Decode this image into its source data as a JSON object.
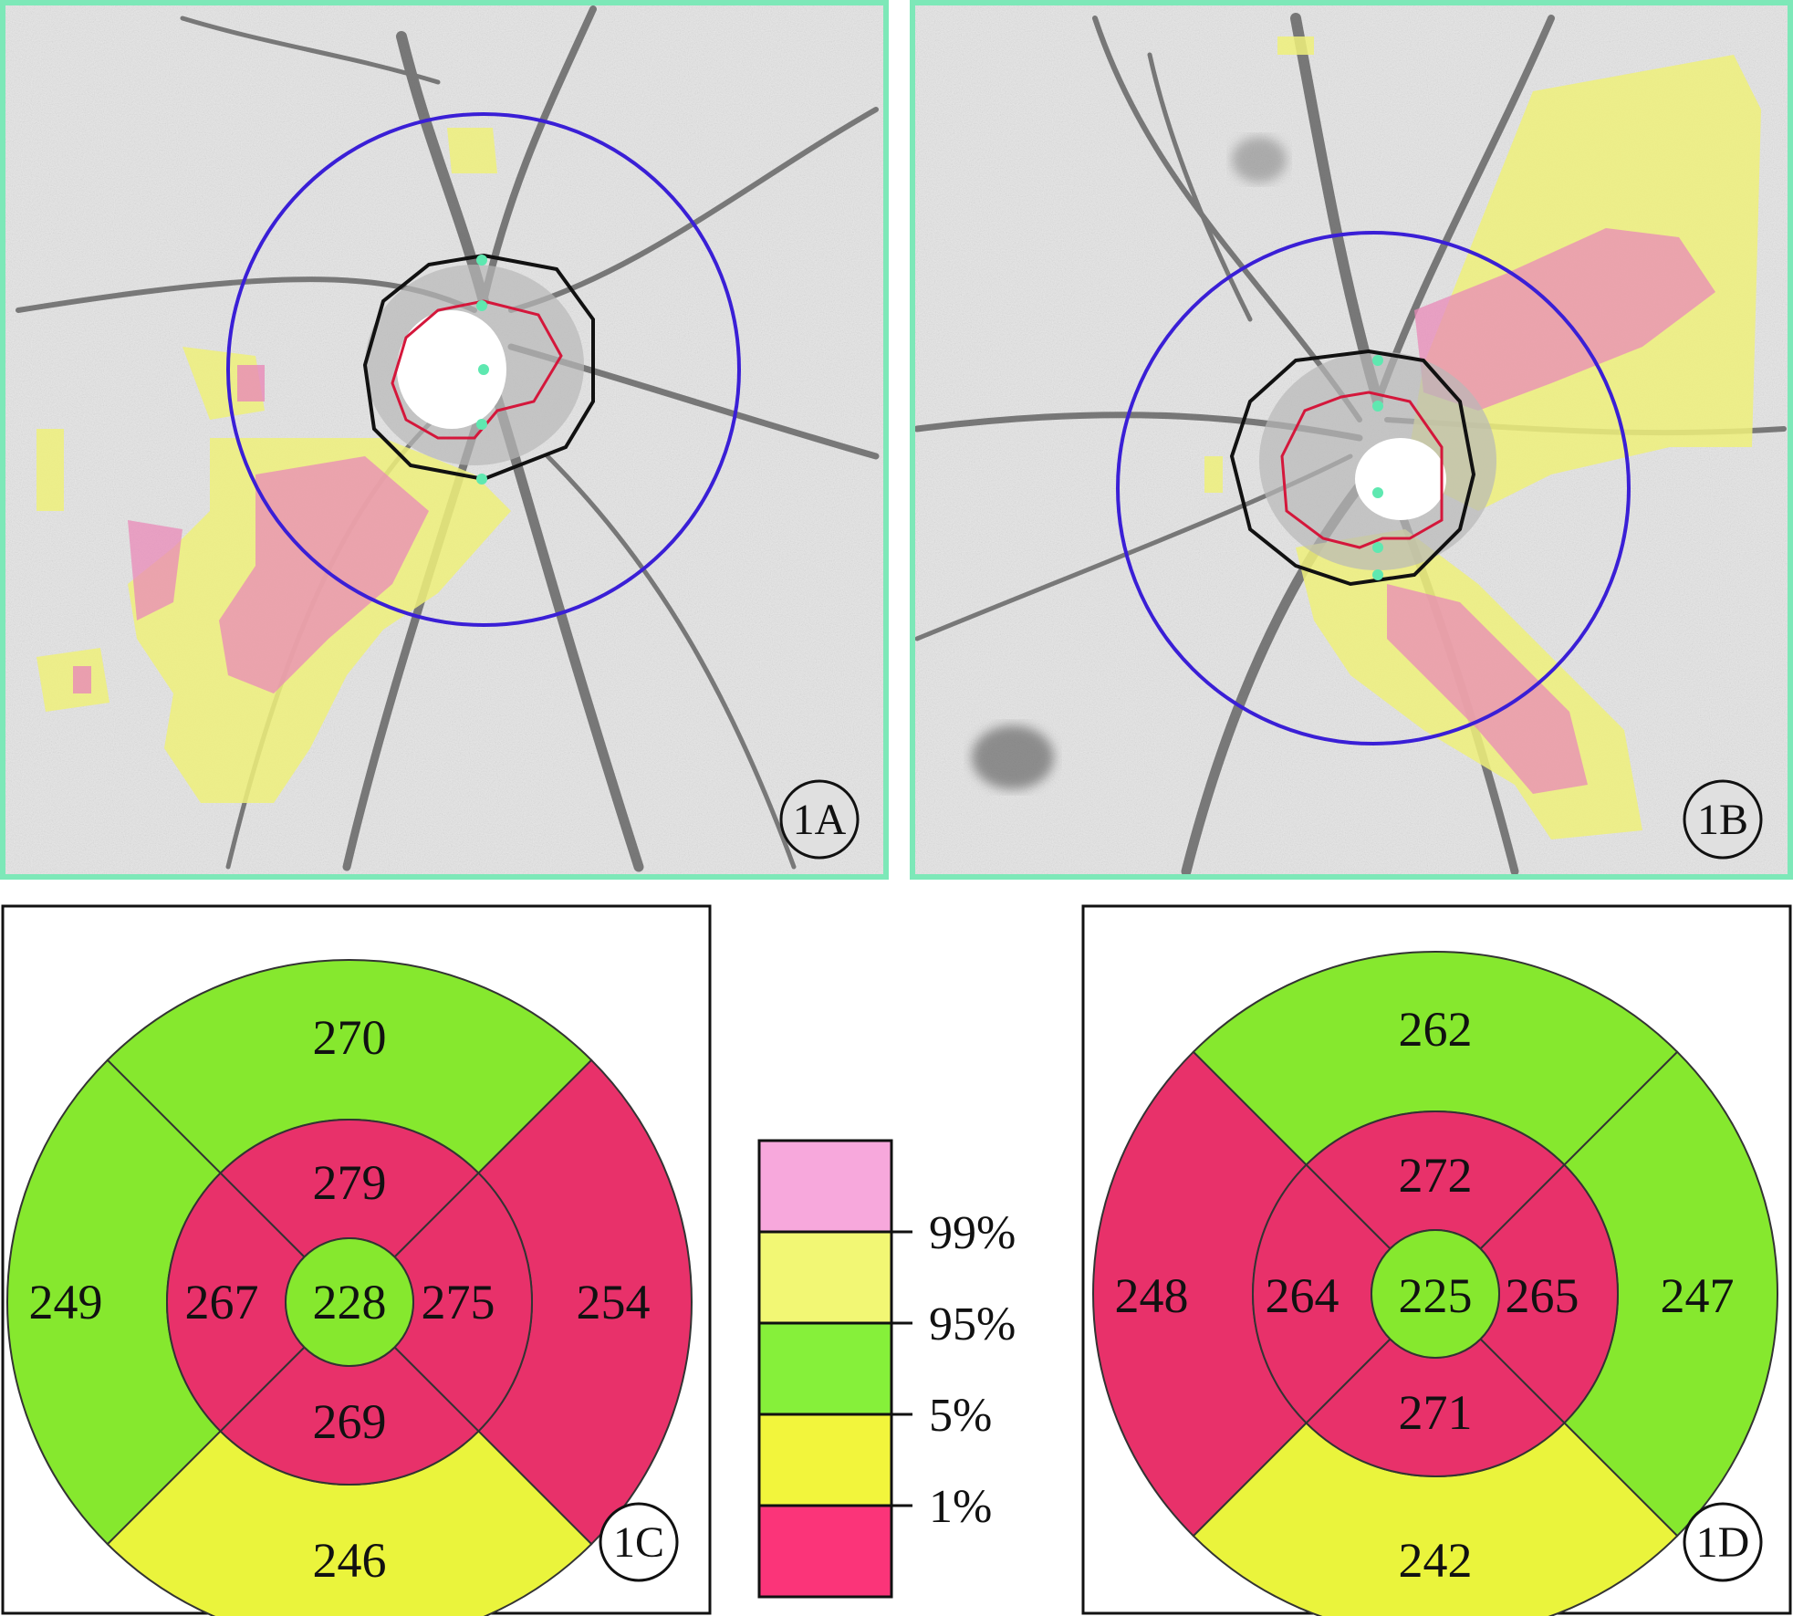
{
  "panels": {
    "A": {
      "label": "1A",
      "colors": {
        "frame": "#7de8b8",
        "scan_circle": "#3a1fd6",
        "disc_margin": "#111111",
        "cup_margin": "#d4173b"
      }
    },
    "B": {
      "label": "1B",
      "colors": {
        "frame": "#7de8b8",
        "scan_circle": "#3a1fd6",
        "disc_margin": "#111111",
        "cup_margin": "#d4173b"
      }
    },
    "C": {
      "label": "1C",
      "center": 228,
      "inner": {
        "top": 279,
        "right": 275,
        "bottom": 269,
        "left": 267
      },
      "outer": {
        "top": 270,
        "right": 254,
        "bottom": 246,
        "left": 249
      },
      "inner_colors": {
        "top": "#e8316a",
        "right": "#e8316a",
        "bottom": "#e8316a",
        "left": "#e8316a"
      },
      "outer_colors": {
        "top": "#86e82e",
        "right": "#e8316a",
        "bottom": "#eaf43c",
        "left": "#86e82e"
      },
      "center_color": "#86e82e"
    },
    "D": {
      "label": "1D",
      "center": 225,
      "inner": {
        "top": 272,
        "right": 265,
        "bottom": 271,
        "left": 264
      },
      "outer": {
        "top": 262,
        "right": 247,
        "bottom": 242,
        "left": 248
      },
      "inner_colors": {
        "top": "#e8316a",
        "right": "#e8316a",
        "bottom": "#e8316a",
        "left": "#e8316a"
      },
      "outer_colors": {
        "top": "#86e82e",
        "right": "#86e82e",
        "bottom": "#eaf43c",
        "left": "#e8316a"
      },
      "center_color": "#86e82e"
    }
  },
  "legend": {
    "boundaries": [
      "99%",
      "95%",
      "5%",
      "1%"
    ],
    "colors": [
      "#f7a8dc",
      "#f2f774",
      "#86f03a",
      "#f2f53c",
      "#fb3479"
    ]
  }
}
